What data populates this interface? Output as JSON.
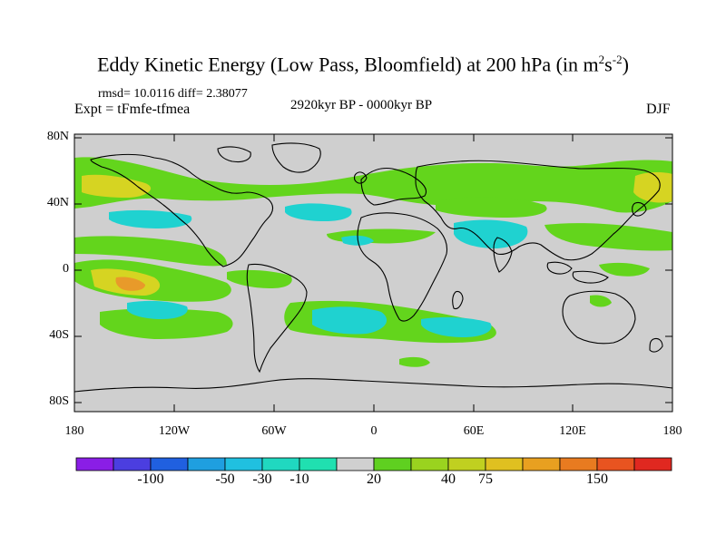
{
  "title": {
    "main": "Eddy Kinetic Energy (Low Pass, Bloomfield) at 200 hPa (in m",
    "exp1": "2",
    "mid": "s",
    "exp2": "-2",
    "close": ")"
  },
  "stats": "rmsd= 10.0116 diff= 2.38077",
  "experiment": "Expt = tFmfe-tfmea",
  "period": "2920kyr BP - 0000kyr BP",
  "season": "DJF",
  "y_ticks": [
    "80N",
    "40N",
    "0",
    "40S",
    "80S"
  ],
  "x_ticks": [
    "180",
    "120W",
    "60W",
    "0",
    "60E",
    "120E",
    "180"
  ],
  "colorbar": {
    "labels": [
      "-100",
      "-50",
      "-30",
      "-10",
      "20",
      "40",
      "75",
      "150"
    ],
    "colors": [
      "#8a1ee6",
      "#4b3ee0",
      "#2060e0",
      "#1f9fe0",
      "#20c0e0",
      "#20d8c0",
      "#20e0b0",
      "#d0d0d0",
      "#5fd020",
      "#9ad31f",
      "#c0d020",
      "#e0c020",
      "#e8a020",
      "#e87b20",
      "#e85420",
      "#e02820"
    ]
  },
  "map_colors": {
    "land_bg": "#cfcfcf",
    "green": "#63d51c",
    "lightgreen": "#9bdb22",
    "yellow": "#d6d422",
    "orange": "#e89a2a",
    "cyan": "#1fd2d0",
    "teal": "#22c2c8"
  }
}
